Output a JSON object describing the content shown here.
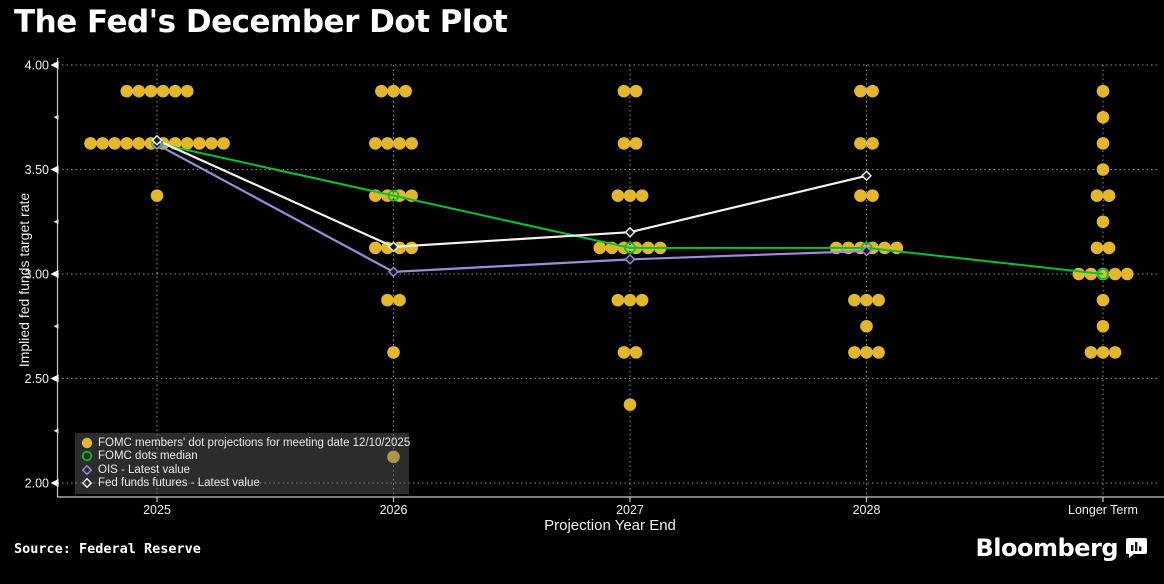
{
  "title": "The Fed's December Dot Plot",
  "source": "Source: Federal Reserve",
  "brand": {
    "name": "Bloomberg",
    "icon": "bar-chart-bubble-icon"
  },
  "colors": {
    "background": "#000000",
    "text": "#ffffff",
    "grid": "#8f8f8f",
    "axis": "#c8c8c8",
    "dots": "#e2b72e",
    "median": "#00c435",
    "ois": "#9c8cd9",
    "futures": "#f2f2f2",
    "legend_background": "rgba(105,105,105,0.42)"
  },
  "chart_data": {
    "type": "scatter",
    "title": "The Fed's December Dot Plot",
    "xlabel": "Projection Year End",
    "ylabel": "Implied fed funds target rate",
    "categories": [
      "2025",
      "2026",
      "2027",
      "2028",
      "Longer Term"
    ],
    "ylim": [
      2.0,
      4.0
    ],
    "yticks": [
      "4.00",
      "3.50",
      "3.00",
      "2.50",
      "2.00"
    ],
    "y_minor_ticks": [
      3.75,
      3.25,
      2.75,
      2.25
    ],
    "grid": "dotted",
    "dot_columns": [
      {
        "category": "2025",
        "dots": [
          {
            "value": 3.875,
            "count": 6
          },
          {
            "value": 3.625,
            "count": 12
          },
          {
            "value": 3.375,
            "count": 1
          }
        ]
      },
      {
        "category": "2026",
        "dots": [
          {
            "value": 3.875,
            "count": 3
          },
          {
            "value": 3.625,
            "count": 4
          },
          {
            "value": 3.375,
            "count": 4
          },
          {
            "value": 3.125,
            "count": 4
          },
          {
            "value": 2.875,
            "count": 2
          },
          {
            "value": 2.625,
            "count": 1
          },
          {
            "value": 2.125,
            "count": 1
          }
        ]
      },
      {
        "category": "2027",
        "dots": [
          {
            "value": 3.875,
            "count": 2
          },
          {
            "value": 3.625,
            "count": 2
          },
          {
            "value": 3.375,
            "count": 3
          },
          {
            "value": 3.125,
            "count": 6
          },
          {
            "value": 2.875,
            "count": 3
          },
          {
            "value": 2.625,
            "count": 2
          },
          {
            "value": 2.375,
            "count": 1
          }
        ]
      },
      {
        "category": "2028",
        "dots": [
          {
            "value": 3.875,
            "count": 2
          },
          {
            "value": 3.625,
            "count": 2
          },
          {
            "value": 3.375,
            "count": 2
          },
          {
            "value": 3.125,
            "count": 6
          },
          {
            "value": 2.875,
            "count": 3
          },
          {
            "value": 2.75,
            "count": 1
          },
          {
            "value": 2.625,
            "count": 3
          }
        ]
      },
      {
        "category": "Longer Term",
        "dots": [
          {
            "value": 3.875,
            "count": 1
          },
          {
            "value": 3.75,
            "count": 1
          },
          {
            "value": 3.625,
            "count": 1
          },
          {
            "value": 3.5,
            "count": 1
          },
          {
            "value": 3.375,
            "count": 2
          },
          {
            "value": 3.25,
            "count": 1
          },
          {
            "value": 3.125,
            "count": 2
          },
          {
            "value": 3.0,
            "count": 5
          },
          {
            "value": 2.875,
            "count": 1
          },
          {
            "value": 2.75,
            "count": 1
          },
          {
            "value": 2.625,
            "count": 3
          }
        ]
      }
    ],
    "series": [
      {
        "name": "FOMC dots median",
        "color": "#00c435",
        "marker": "open-circle",
        "x": [
          "2025",
          "2026",
          "2027",
          "2028",
          "Longer Term"
        ],
        "values": [
          3.625,
          3.375,
          3.125,
          3.125,
          3.0
        ]
      },
      {
        "name": "OIS - Latest value",
        "color": "#9c8cd9",
        "marker": "open-diamond",
        "x": [
          "2025",
          "2026",
          "2027",
          "2028"
        ],
        "values": [
          3.62,
          3.01,
          3.07,
          3.11
        ]
      },
      {
        "name": "Fed funds futures - Latest value",
        "color": "#f2f2f2",
        "marker": "open-diamond",
        "x": [
          "2025",
          "2026",
          "2027",
          "2028"
        ],
        "values": [
          3.64,
          3.13,
          3.2,
          3.47
        ]
      }
    ],
    "legend": {
      "position": "bottom-left",
      "entries": [
        {
          "label": "FOMC members' dot projections for meeting date 12/10/2025",
          "marker": "filled-circle",
          "color": "#e2b72e"
        },
        {
          "label": "FOMC dots median",
          "marker": "open-circle",
          "color": "#00c435"
        },
        {
          "label": "OIS - Latest value",
          "marker": "open-diamond",
          "color": "#9c8cd9"
        },
        {
          "label": "Fed funds futures - Latest value",
          "marker": "open-diamond",
          "color": "#f2f2f2"
        }
      ]
    }
  }
}
